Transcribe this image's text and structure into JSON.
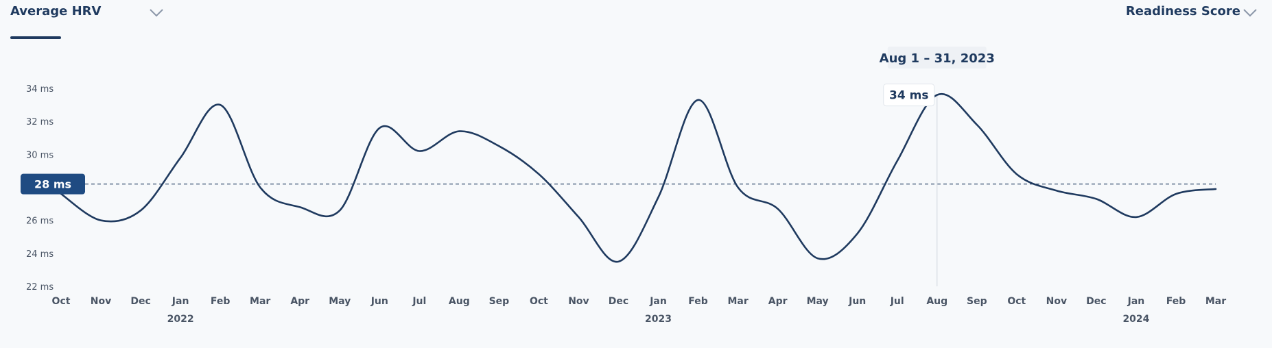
{
  "header": {
    "metric_left": "Average HRV",
    "metric_right": "Readiness Score"
  },
  "colors": {
    "line": "#1f3a5f",
    "average_badge": "#1f4b82",
    "background": "#f7f9fb"
  },
  "icons": {
    "dropdown": "chevron-down-icon"
  },
  "chart_data": {
    "type": "line",
    "title": "",
    "xlabel": "",
    "ylabel": "",
    "ylim": [
      22,
      34
    ],
    "y_ticks": [
      "22 ms",
      "24 ms",
      "26 ms",
      "28 ms",
      "30 ms",
      "32 ms",
      "34 ms"
    ],
    "y_tick_values": [
      22,
      24,
      26,
      28,
      30,
      32,
      34
    ],
    "x_labels": [
      "Oct",
      "Nov",
      "Dec",
      "Jan",
      "Feb",
      "Mar",
      "Apr",
      "May",
      "Jun",
      "Jul",
      "Aug",
      "Sep",
      "Oct",
      "Nov",
      "Dec",
      "Jan",
      "Feb",
      "Mar",
      "Apr",
      "May",
      "Jun",
      "Jul",
      "Aug",
      "Sep",
      "Oct",
      "Nov",
      "Dec",
      "Jan",
      "Feb",
      "Mar"
    ],
    "years": [
      {
        "label": "2022",
        "under_index": 3
      },
      {
        "label": "2023",
        "under_index": 15
      },
      {
        "label": "2024",
        "under_index": 27
      }
    ],
    "grid": false,
    "series": [
      {
        "values": [
          27.6,
          26.0,
          26.6,
          29.8,
          33.0,
          28.0,
          26.8,
          26.6,
          31.6,
          30.2,
          31.4,
          30.5,
          28.8,
          26.2,
          23.5,
          27.4,
          33.3,
          28.0,
          26.7,
          23.7,
          25.2,
          29.6,
          33.6,
          31.8,
          28.8,
          27.8,
          27.3,
          26.2,
          27.6,
          27.9
        ]
      }
    ],
    "average": {
      "value": 28.2,
      "label": "28 ms"
    },
    "tooltip": {
      "index": 22,
      "date": "Aug 1 – 31, 2023",
      "value_label": "34 ms"
    }
  }
}
